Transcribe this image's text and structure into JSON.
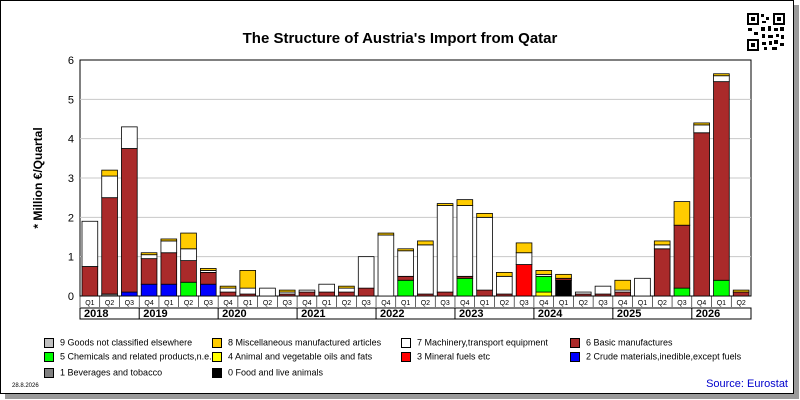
{
  "title": "The Structure of Austria's Import from Qatar",
  "date": "28.8.2026",
  "source": "Source: Eurostat",
  "chart_data": {
    "type": "bar",
    "stacked": true,
    "title": "The Structure of Austria's Import from Qatar",
    "ylabel": "* Million €/Quartal",
    "ylim": [
      0,
      6
    ],
    "yticks": [
      "0",
      "1",
      "2",
      "3",
      "4",
      "5",
      "6"
    ],
    "grid": true,
    "legend": "bottom",
    "categories": [
      "Q1",
      "Q2",
      "Q3",
      "Q4",
      "Q1",
      "Q2",
      "Q3",
      "Q4",
      "Q1",
      "Q2",
      "Q3",
      "Q4",
      "Q1",
      "Q2",
      "Q3",
      "Q4",
      "Q1",
      "Q2",
      "Q3",
      "Q4",
      "Q1",
      "Q2",
      "Q3",
      "Q4",
      "Q1",
      "Q2",
      "Q3",
      "Q4",
      "Q1",
      "Q2",
      "Q3",
      "Q4",
      "Q1",
      "Q2"
    ],
    "years": [
      {
        "label": "2018",
        "start": 0,
        "count": 3
      },
      {
        "label": "2019",
        "start": 3,
        "count": 4
      },
      {
        "label": "2020",
        "start": 7,
        "count": 4
      },
      {
        "label": "2021",
        "start": 11,
        "count": 4
      },
      {
        "label": "2022",
        "start": 15,
        "count": 4
      },
      {
        "label": "2023",
        "start": 19,
        "count": 4
      },
      {
        "label": "2024",
        "start": 23,
        "count": 4
      },
      {
        "label": "2025",
        "start": 27,
        "count": 4
      },
      {
        "label": "2026",
        "start": 31,
        "count": 3
      }
    ],
    "series": [
      {
        "name": "0 Food and live animals",
        "color": "#000000",
        "values": [
          0,
          0,
          0,
          0,
          0,
          0,
          0,
          0,
          0,
          0,
          0,
          0,
          0,
          0,
          0,
          0,
          0,
          0,
          0,
          0,
          0,
          0,
          0,
          0,
          0.4,
          0,
          0,
          0,
          0,
          0,
          0,
          0,
          0,
          0
        ]
      },
      {
        "name": "1 Beverages and tobacco",
        "color": "#808080",
        "values": [
          0,
          0.05,
          0,
          0,
          0,
          0,
          0,
          0,
          0,
          0,
          0,
          0,
          0,
          0,
          0,
          0,
          0,
          0,
          0,
          0,
          0,
          0,
          0,
          0,
          0,
          0,
          0,
          0,
          0,
          0,
          0,
          0,
          0,
          0
        ]
      },
      {
        "name": "2 Crude materials,inedible,except fuels",
        "color": "#0000ff",
        "values": [
          0,
          0,
          0.1,
          0.3,
          0.3,
          0,
          0.3,
          0,
          0,
          0,
          0,
          0,
          0,
          0,
          0,
          0,
          0,
          0,
          0,
          0,
          0,
          0,
          0,
          0,
          0,
          0,
          0,
          0,
          0,
          0,
          0,
          0,
          0,
          0
        ]
      },
      {
        "name": "3 Mineral fuels etc",
        "color": "#ff0000",
        "values": [
          0,
          0,
          0,
          0,
          0,
          0,
          0,
          0,
          0,
          0,
          0,
          0,
          0,
          0,
          0,
          0,
          0,
          0,
          0,
          0,
          0,
          0,
          0.8,
          0,
          0,
          0,
          0,
          0,
          0,
          0,
          0,
          0,
          0,
          0
        ]
      },
      {
        "name": "4 Animal and vegetable oils and fats",
        "color": "#ffff00",
        "values": [
          0,
          0,
          0,
          0,
          0,
          0,
          0,
          0,
          0,
          0,
          0,
          0,
          0,
          0,
          0,
          0,
          0,
          0,
          0,
          0,
          0,
          0,
          0,
          0.1,
          0,
          0,
          0,
          0,
          0,
          0,
          0,
          0,
          0,
          0
        ]
      },
      {
        "name": "5 Chemicals and related products,n.e.s.",
        "color": "#00ff00",
        "values": [
          0,
          0,
          0,
          0,
          0,
          0.35,
          0,
          0,
          0,
          0,
          0,
          0,
          0,
          0,
          0,
          0,
          0.4,
          0,
          0,
          0.45,
          0,
          0,
          0,
          0.4,
          0,
          0,
          0,
          0,
          0,
          0,
          0.2,
          0,
          0.4,
          0
        ]
      },
      {
        "name": "6 Basic manufactures",
        "color": "#aa2a2a",
        "values": [
          0.75,
          2.45,
          3.65,
          0.65,
          0.8,
          0.55,
          0.3,
          0.1,
          0.05,
          0,
          0.05,
          0.1,
          0.1,
          0.1,
          0.2,
          0,
          0.1,
          0.05,
          0.1,
          0.05,
          0.15,
          0.05,
          0,
          0,
          0.05,
          0.05,
          0.05,
          0.1,
          0,
          1.2,
          1.6,
          4.15,
          5.05,
          0.1
        ]
      },
      {
        "name": "7 Machinery,transport equipment",
        "color": "#ffffff",
        "values": [
          1.15,
          0.55,
          0.55,
          0.1,
          0.3,
          0.3,
          0.05,
          0.1,
          0.15,
          0.2,
          0.05,
          0.05,
          0.2,
          0.1,
          0.8,
          1.55,
          0.65,
          1.25,
          2.2,
          1.8,
          1.85,
          0.45,
          0.3,
          0.05,
          0,
          0.05,
          0.2,
          0.05,
          0.45,
          0.1,
          0,
          0.2,
          0.15,
          0
        ]
      },
      {
        "name": "8 Miscellaneous manufactured articles",
        "color": "#ffcc00",
        "values": [
          0,
          0.15,
          0,
          0.05,
          0.05,
          0.4,
          0.05,
          0.05,
          0.45,
          0,
          0.05,
          0,
          0,
          0.05,
          0,
          0.05,
          0.05,
          0.1,
          0.05,
          0.15,
          0.1,
          0.1,
          0.25,
          0.1,
          0.1,
          0,
          0,
          0.25,
          0,
          0.1,
          0.6,
          0.05,
          0.05,
          0.05
        ]
      },
      {
        "name": "9 Goods not classified elsewhere",
        "color": "#c0c0c0",
        "values": [
          0,
          0,
          0,
          0,
          0,
          0,
          0,
          0,
          0,
          0,
          0,
          0,
          0,
          0,
          0,
          0,
          0,
          0,
          0,
          0,
          0,
          0,
          0,
          0,
          0,
          0,
          0,
          0,
          0,
          0,
          0,
          0,
          0,
          0
        ]
      }
    ]
  },
  "legend_layout": [
    {
      "series": 9,
      "col": 0,
      "row": 0
    },
    {
      "series": 8,
      "col": 1,
      "row": 0
    },
    {
      "series": 7,
      "col": 2,
      "row": 0
    },
    {
      "series": 6,
      "col": 3,
      "row": 0
    },
    {
      "series": 5,
      "col": 0,
      "row": 1
    },
    {
      "series": 4,
      "col": 1,
      "row": 1
    },
    {
      "series": 3,
      "col": 2,
      "row": 1
    },
    {
      "series": 2,
      "col": 3,
      "row": 1
    },
    {
      "series": 1,
      "col": 0,
      "row": 2
    },
    {
      "series": 0,
      "col": 1,
      "row": 2
    }
  ]
}
